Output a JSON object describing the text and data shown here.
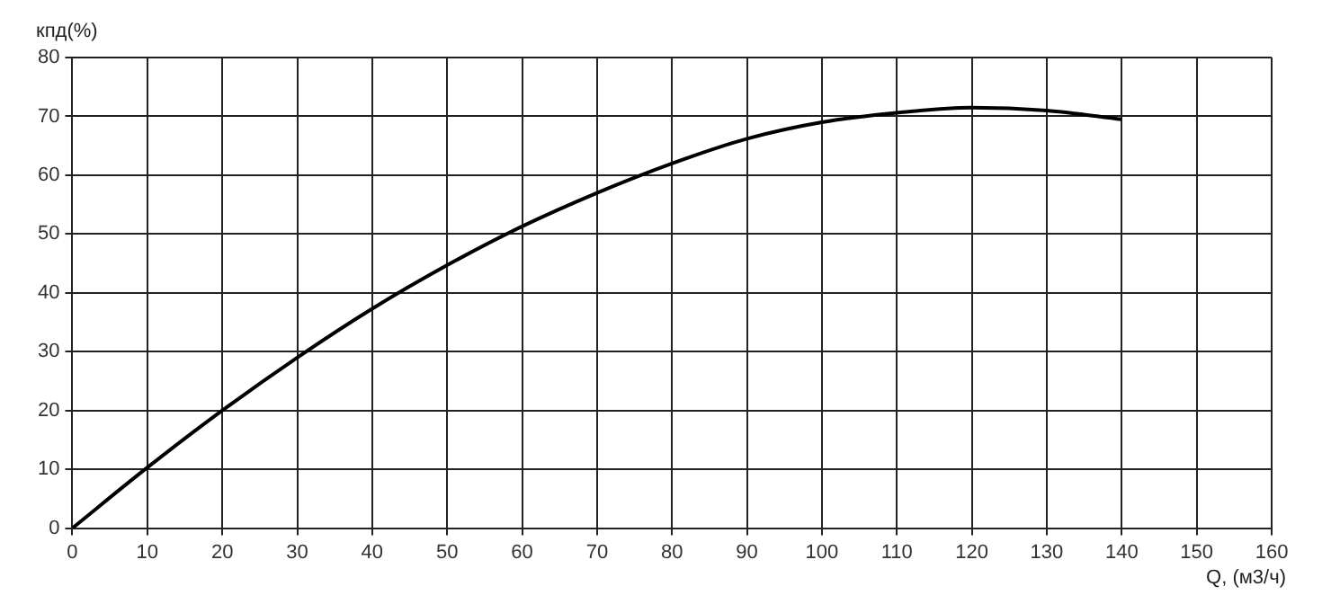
{
  "chart_data": {
    "type": "line",
    "xlabel": "Q, (м3/ч)",
    "ylabel": "кпд(%)",
    "series": [
      {
        "color": "#000000",
        "x": [
          0,
          10,
          20,
          30,
          40,
          50,
          60,
          70,
          80,
          90,
          100,
          110,
          120,
          130,
          140
        ],
        "values": [
          0,
          10.3,
          20,
          29,
          37.3,
          44.7,
          51.3,
          57,
          62,
          66.2,
          69,
          70.6,
          71.5,
          71,
          69.5
        ]
      }
    ],
    "xlim": [
      0,
      160
    ],
    "xticks": [
      0,
      10,
      20,
      30,
      40,
      50,
      60,
      70,
      80,
      90,
      100,
      110,
      120,
      130,
      140,
      150,
      160
    ],
    "ylim": [
      0,
      80
    ],
    "yticks": [
      0,
      10,
      20,
      30,
      40,
      50,
      60,
      70,
      80
    ],
    "grid": true,
    "legend": false,
    "marker": "none",
    "line_style": "solid"
  }
}
